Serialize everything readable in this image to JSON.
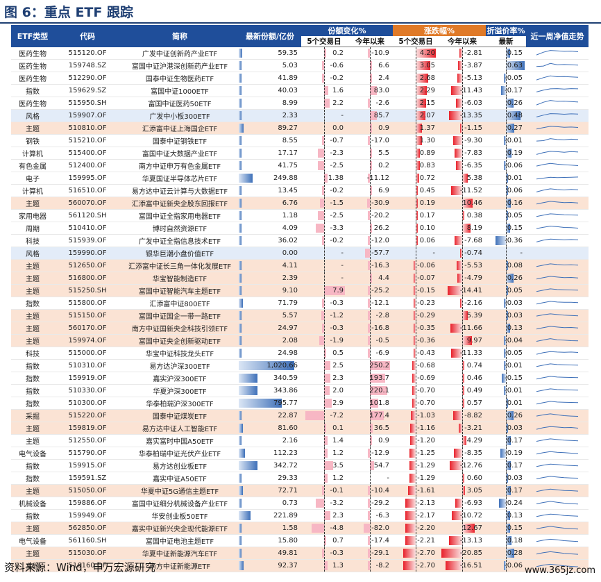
{
  "title": "图 6：重点 ETF 跟踪",
  "headers": {
    "type": "ETF类型",
    "code": "代码",
    "name": "简称",
    "share": "最新份额/亿份",
    "grp_change": "份额变化%",
    "grp_rise": "涨跌幅%",
    "grp_premium": "折溢价率%",
    "sub_5d": "5个交易日",
    "sub_ytd": "今年以来",
    "sub_latest": "最新",
    "trend": "近一周净值走势"
  },
  "colors": {
    "header_blue": "#1f4e9a",
    "header_orange": "#e07a28",
    "shade_orange": "#fbe3d4",
    "shade_blue": "#e3ecf8",
    "bar_red": "#e8212b",
    "bar_blue": "#3d6fb8",
    "bar_pink": "#f7b7c4"
  },
  "rows": [
    {
      "type": "医药生物",
      "code": "515120.OF",
      "name": "广发中证创新药产业ETF",
      "share": "59.35",
      "c5": "0.2",
      "cy": "-10.9",
      "r5": "4.20",
      "ry": "-2.81",
      "p": "0.15",
      "shade": "none",
      "trend": [
        0.3,
        0.6,
        0.8,
        0.75,
        0.7,
        0.72,
        0.65
      ]
    },
    {
      "type": "医药生物",
      "code": "159748.SZ",
      "name": "富国中证沪港深创新药产业ETF",
      "share": "5.03",
      "c5": "-0.6",
      "cy": "6.6",
      "r5": "3.05",
      "ry": "-3.87",
      "p": "0.63",
      "shade": "none",
      "trend": [
        0.4,
        0.45,
        0.75,
        0.6,
        0.62,
        0.6,
        0.55
      ]
    },
    {
      "type": "医药生物",
      "code": "512290.OF",
      "name": "国泰中证生物医药ETF",
      "share": "41.89",
      "c5": "-0.2",
      "cy": "2.4",
      "r5": "2.68",
      "ry": "-5.13",
      "p": "-0.05",
      "shade": "none",
      "trend": [
        0.3,
        0.55,
        0.75,
        0.65,
        0.68,
        0.63,
        0.6
      ]
    },
    {
      "type": "指数",
      "code": "159629.SZ",
      "name": "富国中证1000ETF",
      "share": "40.03",
      "c5": "1.6",
      "cy": "83.0",
      "r5": "2.29",
      "ry": "-11.43",
      "p": "-0.17",
      "shade": "none",
      "trend": [
        0.35,
        0.55,
        0.7,
        0.72,
        0.68,
        0.72,
        0.7
      ]
    },
    {
      "type": "医药生物",
      "code": "515950.SH",
      "name": "富国中证医药50ETF",
      "share": "8.99",
      "c5": "2.2",
      "cy": "-2.6",
      "r5": "2.15",
      "ry": "-6.03",
      "p": "0.26",
      "shade": "none",
      "trend": [
        0.3,
        0.6,
        0.8,
        0.7,
        0.72,
        0.68,
        0.62
      ]
    },
    {
      "type": "风格",
      "code": "159907.OF",
      "name": "广发中小板300ETF",
      "share": "2.33",
      "c5": "-",
      "cy": "85.7",
      "r5": "2.07",
      "ry": "-13.35",
      "p": "0.48",
      "shade": "blue",
      "trend": [
        0.35,
        0.55,
        0.72,
        0.7,
        0.65,
        0.7,
        0.68
      ]
    },
    {
      "type": "主题",
      "code": "510810.OF",
      "name": "汇添富中证上海国企ETF",
      "share": "89.27",
      "c5": "0.0",
      "cy": "0.9",
      "r5": "1.37",
      "ry": "-1.15",
      "p": "0.27",
      "shade": "orange",
      "trend": [
        0.4,
        0.55,
        0.7,
        0.66,
        0.6,
        0.62,
        0.58
      ]
    },
    {
      "type": "钢铁",
      "code": "515210.OF",
      "name": "国泰中证钢铁ETF",
      "share": "8.55",
      "c5": "-0.7",
      "cy": "-17.0",
      "r5": "1.30",
      "ry": "-9.30",
      "p": "-0.01",
      "shade": "none",
      "trend": [
        0.45,
        0.5,
        0.72,
        0.62,
        0.6,
        0.66,
        0.62
      ]
    },
    {
      "type": "计算机",
      "code": "515400.OF",
      "name": "富国中证大数据产业ETF",
      "share": "17.17",
      "c5": "-2.3",
      "cy": "5.5",
      "r5": "0.89",
      "ry": "-7.83",
      "p": "0.19",
      "shade": "none",
      "trend": [
        0.35,
        0.55,
        0.7,
        0.66,
        0.6,
        0.68,
        0.62
      ]
    },
    {
      "type": "有色金属",
      "code": "512400.OF",
      "name": "南方中证申万有色金属ETF",
      "share": "41.75",
      "c5": "-2.5",
      "cy": "0.2",
      "r5": "0.83",
      "ry": "-6.35",
      "p": "-0.06",
      "shade": "none",
      "trend": [
        0.45,
        0.62,
        0.75,
        0.66,
        0.6,
        0.55,
        0.5
      ]
    },
    {
      "type": "电子",
      "code": "159995.OF",
      "name": "华夏国证半导体芯片ETF",
      "share": "249.88",
      "c5": "1.38",
      "cy": "-11.12",
      "r5": "0.72",
      "ry": "5.38",
      "p": "0.01",
      "shade": "none",
      "trend": [
        0.4,
        0.5,
        0.6,
        0.55,
        0.58,
        0.6,
        0.62
      ]
    },
    {
      "type": "计算机",
      "code": "516510.OF",
      "name": "易方达中证云计算与大数据ETF",
      "share": "13.45",
      "c5": "-0.2",
      "cy": "6.9",
      "r5": "0.45",
      "ry": "-11.52",
      "p": "0.06",
      "shade": "none",
      "trend": [
        0.35,
        0.55,
        0.7,
        0.62,
        0.58,
        0.63,
        0.6
      ]
    },
    {
      "type": "主题",
      "code": "560070.OF",
      "name": "汇添富中证新央企股东回报ETF",
      "share": "6.76",
      "c5": "-1.5",
      "cy": "-30.9",
      "r5": "0.19",
      "ry": "10.46",
      "p": "0.16",
      "shade": "orange",
      "trend": [
        0.4,
        0.55,
        0.7,
        0.62,
        0.55,
        0.58,
        0.52
      ]
    },
    {
      "type": "家用电器",
      "code": "561120.SH",
      "name": "富国中证全指家用电器ETF",
      "share": "1.18",
      "c5": "-2.5",
      "cy": "-20.2",
      "r5": "0.17",
      "ry": "0.38",
      "p": "0.05",
      "shade": "none",
      "trend": [
        0.4,
        0.55,
        0.7,
        0.65,
        0.6,
        0.58,
        0.55
      ]
    },
    {
      "type": "周期",
      "code": "510410.OF",
      "name": "博时自然资源ETF",
      "share": "4.09",
      "c5": "-3.3",
      "cy": "26.2",
      "r5": "0.10",
      "ry": "8.19",
      "p": "0.15",
      "shade": "none",
      "trend": [
        0.45,
        0.6,
        0.72,
        0.66,
        0.58,
        0.56,
        0.5
      ]
    },
    {
      "type": "科技",
      "code": "515939.OF",
      "name": "广发中证全指信息技术ETF",
      "share": "36.02",
      "c5": "-0.2",
      "cy": "-12.0",
      "r5": "0.06",
      "ry": "-7.68",
      "p": "-0.36",
      "shade": "none",
      "trend": [
        0.35,
        0.55,
        0.68,
        0.64,
        0.6,
        0.62,
        0.6
      ]
    },
    {
      "type": "风格",
      "code": "159990.OF",
      "name": "银华巨潮小盘价值ETF",
      "share": "0.00",
      "c5": "-",
      "cy": "-57.7",
      "r5": "-",
      "ry": "-0.74",
      "p": "-",
      "shade": "blue",
      "trend": []
    },
    {
      "type": "主题",
      "code": "512650.OF",
      "name": "汇添富中证长三角一体化发展ETF",
      "share": "4.11",
      "c5": "-",
      "cy": "-16.3",
      "r5": "-0.06",
      "ry": "-5.53",
      "p": "0.08",
      "shade": "orange",
      "trend": [
        0.4,
        0.55,
        0.7,
        0.62,
        0.58,
        0.6,
        0.55
      ]
    },
    {
      "type": "主题",
      "code": "516800.OF",
      "name": "华宝智能制造ETF",
      "share": "2.39",
      "c5": "-",
      "cy": "4.4",
      "r5": "-0.07",
      "ry": "-4.79",
      "p": "0.26",
      "shade": "orange",
      "trend": [
        0.4,
        0.55,
        0.7,
        0.62,
        0.55,
        0.58,
        0.52
      ]
    },
    {
      "type": "主题",
      "code": "515250.SH",
      "name": "富国中证智能汽车主题ETF",
      "share": "9.10",
      "c5": "7.9",
      "cy": "-25.2",
      "r5": "-0.15",
      "ry": "-14.41",
      "p": "0.05",
      "shade": "orange",
      "trend": [
        0.4,
        0.55,
        0.7,
        0.62,
        0.6,
        0.58,
        0.55
      ]
    },
    {
      "type": "指数",
      "code": "515800.OF",
      "name": "汇添富中证800ETF",
      "share": "71.79",
      "c5": "-0.3",
      "cy": "-12.1",
      "r5": "-0.23",
      "ry": "-2.16",
      "p": "-0.03",
      "shade": "none",
      "trend": [
        0.4,
        0.55,
        0.7,
        0.62,
        0.6,
        0.6,
        0.55
      ]
    },
    {
      "type": "主题",
      "code": "515150.OF",
      "name": "富国中证国企一带一路ETF",
      "share": "5.57",
      "c5": "-1.2",
      "cy": "-2.8",
      "r5": "-0.29",
      "ry": "5.39",
      "p": "0.03",
      "shade": "orange",
      "trend": [
        0.45,
        0.6,
        0.7,
        0.62,
        0.55,
        0.52,
        0.48
      ]
    },
    {
      "type": "主题",
      "code": "560170.OF",
      "name": "南方中证国新央企科技引领ETF",
      "share": "24.97",
      "c5": "-0.3",
      "cy": "-16.8",
      "r5": "-0.35",
      "ry": "-11.66",
      "p": "0.13",
      "shade": "orange",
      "trend": [
        0.4,
        0.55,
        0.7,
        0.62,
        0.55,
        0.58,
        0.52
      ]
    },
    {
      "type": "主题",
      "code": "159974.OF",
      "name": "富国中证央企创新驱动ETF",
      "share": "2.08",
      "c5": "-1.9",
      "cy": "-0.5",
      "r5": "-0.36",
      "ry": "9.97",
      "p": "-0.04",
      "shade": "orange",
      "trend": [
        0.42,
        0.58,
        0.72,
        0.6,
        0.55,
        0.5,
        0.48
      ]
    },
    {
      "type": "科技",
      "code": "515000.OF",
      "name": "华宝中证科技龙头ETF",
      "share": "24.98",
      "c5": "0.5",
      "cy": "-6.9",
      "r5": "-0.43",
      "ry": "-11.33",
      "p": "-0.05",
      "shade": "none",
      "trend": [
        0.38,
        0.55,
        0.68,
        0.62,
        0.6,
        0.62,
        0.58
      ]
    },
    {
      "type": "指数",
      "code": "510310.OF",
      "name": "易方达沪深300ETF",
      "share": "1,020.66",
      "c5": "2.5",
      "cy": "250.2",
      "r5": "-0.68",
      "ry": "0.74",
      "p": "-0.01",
      "shade": "none",
      "trend": [
        0.4,
        0.55,
        0.7,
        0.62,
        0.6,
        0.58,
        0.55
      ]
    },
    {
      "type": "指数",
      "code": "159919.OF",
      "name": "嘉实沪深300ETF",
      "share": "340.59",
      "c5": "2.3",
      "cy": "193.7",
      "r5": "-0.69",
      "ry": "0.46",
      "p": "-0.15",
      "shade": "none",
      "trend": [
        0.4,
        0.55,
        0.7,
        0.62,
        0.6,
        0.58,
        0.55
      ]
    },
    {
      "type": "指数",
      "code": "510330.OF",
      "name": "华夏沪深300ETF",
      "share": "343.86",
      "c5": "2.0",
      "cy": "220.1",
      "r5": "-0.70",
      "ry": "0.49",
      "p": "-0.01",
      "shade": "none",
      "trend": [
        0.4,
        0.55,
        0.7,
        0.62,
        0.6,
        0.58,
        0.55
      ]
    },
    {
      "type": "指数",
      "code": "510300.OF",
      "name": "华泰柏瑞沪深300ETF",
      "share": "795.77",
      "c5": "2.9",
      "cy": "101.8",
      "r5": "-0.70",
      "ry": "0.57",
      "p": "0.01",
      "shade": "none",
      "trend": [
        0.4,
        0.55,
        0.7,
        0.62,
        0.6,
        0.58,
        0.55
      ]
    },
    {
      "type": "采掘",
      "code": "515220.OF",
      "name": "国泰中证煤炭ETF",
      "share": "22.87",
      "c5": "-7.2",
      "cy": "177.4",
      "r5": "-1.03",
      "ry": "-8.82",
      "p": "0.26",
      "shade": "orange",
      "trend": [
        0.45,
        0.6,
        0.7,
        0.6,
        0.5,
        0.45,
        0.42
      ]
    },
    {
      "type": "主题",
      "code": "159819.OF",
      "name": "易方达中证人工智能ETF",
      "share": "81.60",
      "c5": "0.1",
      "cy": "36.5",
      "r5": "-1.16",
      "ry": "-3.21",
      "p": "0.03",
      "shade": "orange",
      "trend": [
        0.38,
        0.55,
        0.68,
        0.62,
        0.55,
        0.58,
        0.5
      ]
    },
    {
      "type": "主题",
      "code": "512550.OF",
      "name": "嘉实富时中国A50ETF",
      "share": "2.16",
      "c5": "1.4",
      "cy": "0.9",
      "r5": "-1.20",
      "ry": "4.29",
      "p": "0.17",
      "shade": "none",
      "trend": [
        0.42,
        0.58,
        0.7,
        0.62,
        0.55,
        0.52,
        0.48
      ]
    },
    {
      "type": "电气设备",
      "code": "515790.OF",
      "name": "华泰柏瑞中证光伏产业ETF",
      "share": "112.23",
      "c5": "1.2",
      "cy": "-12.9",
      "r5": "-1.25",
      "ry": "-8.35",
      "p": "-0.19",
      "shade": "none",
      "trend": [
        0.4,
        0.55,
        0.68,
        0.6,
        0.55,
        0.5,
        0.46
      ]
    },
    {
      "type": "指数",
      "code": "159915.OF",
      "name": "易方达创业板ETF",
      "share": "342.72",
      "c5": "3.5",
      "cy": "54.7",
      "r5": "-1.29",
      "ry": "-12.76",
      "p": "0.17",
      "shade": "none",
      "trend": [
        0.4,
        0.55,
        0.68,
        0.62,
        0.55,
        0.52,
        0.48
      ]
    },
    {
      "type": "指数",
      "code": "159591.SZ",
      "name": "嘉实中证A50ETF",
      "share": "29.33",
      "c5": "1.2",
      "cy": "-",
      "r5": "-1.29",
      "ry": "0.60",
      "p": "0.03",
      "shade": "none",
      "trend": [
        0.42,
        0.58,
        0.7,
        0.62,
        0.55,
        0.52,
        0.5
      ]
    },
    {
      "type": "主题",
      "code": "515050.OF",
      "name": "华夏中证5G通信主题ETF",
      "share": "72.71",
      "c5": "-0.1",
      "cy": "-10.4",
      "r5": "-1.61",
      "ry": "3.05",
      "p": "0.17",
      "shade": "orange",
      "trend": [
        0.4,
        0.55,
        0.68,
        0.6,
        0.52,
        0.5,
        0.45
      ]
    },
    {
      "type": "机械设备",
      "code": "159886.OF",
      "name": "富国中证细分机械设备产业ETF",
      "share": "0.73",
      "c5": "-3.2",
      "cy": "-29.2",
      "r5": "-2.13",
      "ry": "-6.93",
      "p": "-0.24",
      "shade": "none",
      "trend": [
        0.42,
        0.58,
        0.7,
        0.6,
        0.5,
        0.45,
        0.4
      ]
    },
    {
      "type": "指数",
      "code": "159949.OF",
      "name": "华安创业板50ETF",
      "share": "221.89",
      "c5": "2.3",
      "cy": "-6.3",
      "r5": "-2.17",
      "ry": "-10.72",
      "p": "0.13",
      "shade": "none",
      "trend": [
        0.4,
        0.55,
        0.68,
        0.62,
        0.52,
        0.48,
        0.44
      ]
    },
    {
      "type": "主题",
      "code": "562850.OF",
      "name": "嘉实中证新兴央企现代能源ETF",
      "share": "1.58",
      "c5": "-4.8",
      "cy": "-82.0",
      "r5": "-2.20",
      "ry": "12.67",
      "p": "0.15",
      "shade": "orange",
      "trend": [
        0.42,
        0.58,
        0.7,
        0.6,
        0.5,
        0.45,
        0.4
      ]
    },
    {
      "type": "电气设备",
      "code": "561160.SH",
      "name": "富国中证电池主题ETF",
      "share": "15.80",
      "c5": "0.7",
      "cy": "-17.4",
      "r5": "-2.21",
      "ry": "-13.13",
      "p": "0.18",
      "shade": "none",
      "trend": [
        0.4,
        0.55,
        0.66,
        0.6,
        0.5,
        0.45,
        0.4
      ]
    },
    {
      "type": "主题",
      "code": "515030.OF",
      "name": "华夏中证新能源汽车ETF",
      "share": "49.81",
      "c5": "-0.3",
      "cy": "-29.1",
      "r5": "-2.70",
      "ry": "-20.85",
      "p": "0.28",
      "shade": "orange",
      "trend": [
        0.4,
        0.55,
        0.66,
        0.58,
        0.48,
        0.42,
        0.38
      ]
    },
    {
      "type": "主题",
      "code": "516160.OF",
      "name": "南方中证新能源ETF",
      "share": "92.37",
      "c5": "1.3",
      "cy": "-8.2",
      "r5": "-2.70",
      "ry": "-16.51",
      "p": "-0.06",
      "shade": "orange",
      "trend": [
        0.4,
        0.55,
        0.66,
        0.58,
        0.48,
        0.42,
        0.38
      ]
    }
  ],
  "footer": "资料来源：Wind，申万宏源研究",
  "watermark": "www.365jz.com"
}
